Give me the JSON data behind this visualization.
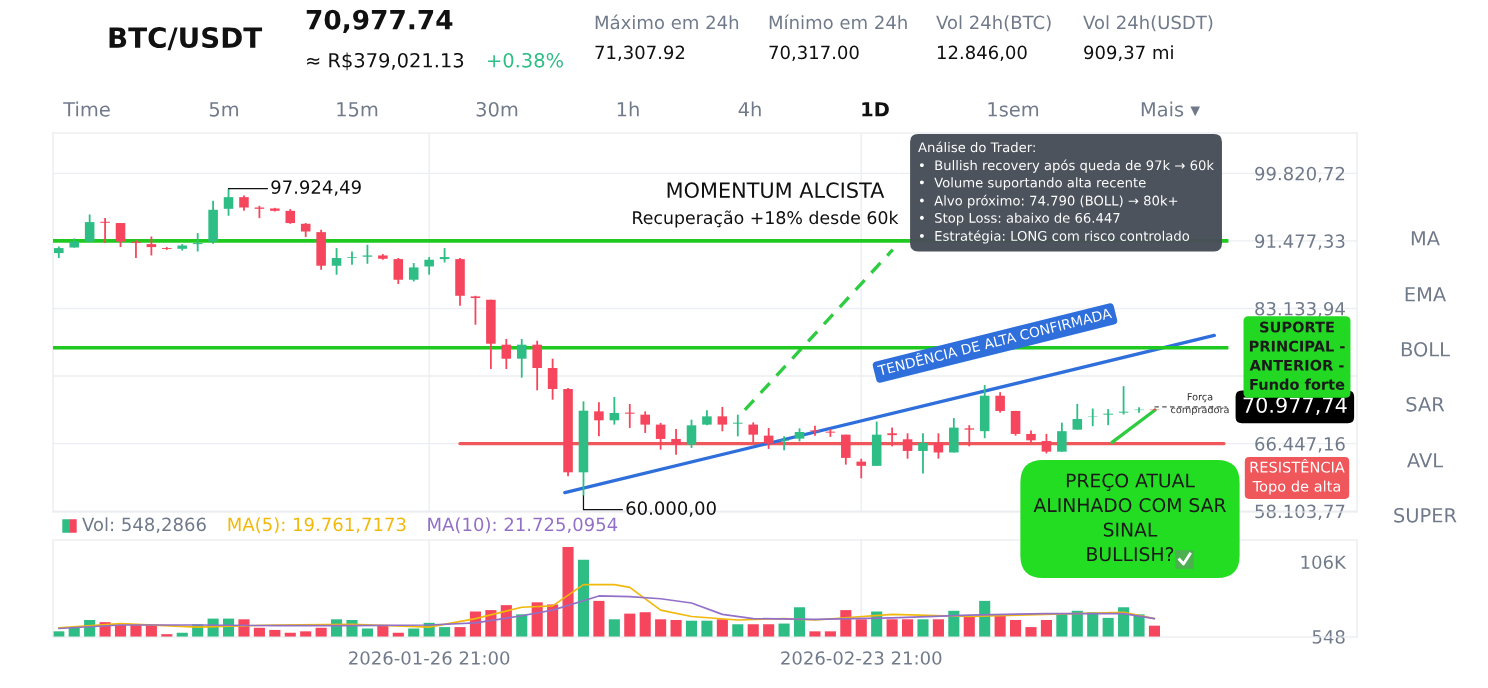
{
  "chart_data": [
    {
      "type": "candlestick",
      "title": "BTC/USDT",
      "x": [
        "2026-01-02T21:00",
        "2026-01-03T21:00",
        "2026-01-04T21:00",
        "2026-01-05T21:00",
        "2026-01-06T21:00",
        "2026-01-07T21:00",
        "2026-01-08T21:00",
        "2026-01-09T21:00",
        "2026-01-10T21:00",
        "2026-01-11T21:00",
        "2026-01-12T21:00",
        "2026-01-13T21:00",
        "2026-01-14T21:00",
        "2026-01-15T21:00",
        "2026-01-16T21:00",
        "2026-01-17T21:00",
        "2026-01-18T21:00",
        "2026-01-19T21:00",
        "2026-01-20T21:00",
        "2026-01-21T21:00",
        "2026-01-22T21:00",
        "2026-01-23T21:00",
        "2026-01-24T21:00",
        "2026-01-25T21:00",
        "2026-01-26T21:00",
        "2026-01-27T21:00",
        "2026-01-28T21:00",
        "2026-01-29T21:00",
        "2026-01-30T21:00",
        "2026-01-31T21:00",
        "2026-02-01T21:00",
        "2026-02-02T21:00",
        "2026-02-03T21:00",
        "2026-02-04T21:00",
        "2026-02-05T21:00",
        "2026-02-06T21:00",
        "2026-02-07T21:00",
        "2026-02-08T21:00",
        "2026-02-09T21:00",
        "2026-02-10T21:00",
        "2026-02-11T21:00",
        "2026-02-12T21:00",
        "2026-02-13T21:00",
        "2026-02-14T21:00",
        "2026-02-15T21:00",
        "2026-02-16T21:00",
        "2026-02-17T21:00",
        "2026-02-18T21:00",
        "2026-02-19T21:00",
        "2026-02-20T21:00",
        "2026-02-21T21:00",
        "2026-02-22T21:00",
        "2026-02-23T21:00",
        "2026-02-24T21:00",
        "2026-02-25T21:00",
        "2026-02-26T21:00",
        "2026-02-27T21:00",
        "2026-02-28T21:00",
        "2026-03-01T21:00",
        "2026-03-02T21:00",
        "2026-03-03T21:00",
        "2026-03-04T21:00",
        "2026-03-05T21:00",
        "2026-03-06T21:00",
        "2026-03-07T21:00",
        "2026-03-08T21:00",
        "2026-03-09T21:00",
        "2026-03-10T21:00",
        "2026-03-11T21:00",
        "2026-03-12T21:00",
        "2026-03-13T21:00",
        "2026-03-14T21:00"
      ],
      "ohlc": [
        [
          89970,
          90790,
          89360,
          90590
        ],
        [
          90660,
          91770,
          90660,
          91400
        ],
        [
          91400,
          94740,
          91400,
          93800
        ],
        [
          93840,
          94290,
          91210,
          93710
        ],
        [
          93680,
          93680,
          90710,
          91400
        ],
        [
          91370,
          91610,
          89360,
          91240
        ],
        [
          91080,
          92020,
          89680,
          90710
        ],
        [
          90590,
          90710,
          90380,
          90470
        ],
        [
          90500,
          91080,
          90290,
          90910
        ],
        [
          91080,
          92440,
          90170,
          91210
        ],
        [
          91400,
          96430,
          91120,
          95320
        ],
        [
          95440,
          97924.49,
          94580,
          96880
        ],
        [
          96880,
          97080,
          95190,
          95600
        ],
        [
          95600,
          95810,
          94290,
          95440
        ],
        [
          95480,
          95560,
          95110,
          95190
        ],
        [
          95190,
          95400,
          93590,
          93680
        ],
        [
          93590,
          93680,
          91950,
          92640
        ],
        [
          92560,
          92850,
          87910,
          88410
        ],
        [
          88410,
          90590,
          87300,
          89360
        ],
        [
          89390,
          90170,
          88530,
          89480
        ],
        [
          89520,
          91000,
          88650,
          89680
        ],
        [
          89680,
          89850,
          89150,
          89270
        ],
        [
          89230,
          89360,
          86150,
          86680
        ],
        [
          86680,
          88740,
          86470,
          88200
        ],
        [
          88320,
          89480,
          87300,
          89150
        ],
        [
          89230,
          90590,
          88810,
          89480
        ],
        [
          89230,
          89360,
          83470,
          84700
        ],
        [
          84620,
          84700,
          81130,
          84420
        ],
        [
          84210,
          84210,
          75660,
          78780
        ],
        [
          78660,
          79360,
          75660,
          76930
        ],
        [
          76930,
          79360,
          74590,
          78660
        ],
        [
          78660,
          79150,
          73020,
          75780
        ],
        [
          75780,
          76930,
          71870,
          73190
        ],
        [
          73190,
          73310,
          62410,
          62900
        ],
        [
          62900,
          71660,
          60000,
          70510
        ],
        [
          70430,
          71540,
          67340,
          69320
        ],
        [
          69320,
          72200,
          68790,
          70230
        ],
        [
          70270,
          71340,
          68380,
          70140
        ],
        [
          70020,
          70430,
          67760,
          68790
        ],
        [
          68790,
          69000,
          65700,
          67020
        ],
        [
          67020,
          68250,
          65080,
          66320
        ],
        [
          66320,
          69400,
          65910,
          68700
        ],
        [
          68790,
          70550,
          68700,
          69810
        ],
        [
          69810,
          70970,
          67960,
          68790
        ],
        [
          68910,
          70020,
          67340,
          69030
        ],
        [
          68790,
          69070,
          66530,
          67550
        ],
        [
          67430,
          68380,
          65790,
          66440
        ],
        [
          66810,
          67340,
          65610,
          66930
        ],
        [
          67060,
          68330,
          66720,
          67880
        ],
        [
          68080,
          68660,
          67430,
          67960
        ],
        [
          67920,
          68250,
          67270,
          67800
        ],
        [
          67550,
          67550,
          63850,
          64680
        ],
        [
          64220,
          64580,
          62160,
          63700
        ],
        [
          63700,
          69170,
          63700,
          67550
        ],
        [
          67720,
          68430,
          66110,
          67490
        ],
        [
          66980,
          67720,
          64580,
          65540
        ],
        [
          65540,
          67720,
          62740,
          66540
        ],
        [
          66540,
          67720,
          64580,
          65350
        ],
        [
          65350,
          69600,
          65350,
          68420
        ],
        [
          68330,
          68720,
          66110,
          68170
        ],
        [
          67980,
          73670,
          67110,
          72360
        ],
        [
          72360,
          72800,
          70270,
          70480
        ],
        [
          70480,
          70480,
          67430,
          67640
        ],
        [
          67640,
          68070,
          66540,
          66850
        ],
        [
          66760,
          67640,
          65230,
          65450
        ],
        [
          65450,
          69030,
          65450,
          67980
        ],
        [
          68170,
          71350,
          68170,
          69480
        ],
        [
          69770,
          70780,
          68600,
          69820
        ],
        [
          70020,
          70700,
          68720,
          70140
        ],
        [
          70270,
          73540,
          70040,
          70390
        ],
        [
          70580,
          70920,
          70270,
          70640
        ],
        [
          70640,
          70760,
          70570,
          70580
        ]
      ],
      "colors": [
        "#2ebd85",
        "#2ebd85",
        "#2ebd85",
        "#f6465d",
        "#f6465d",
        "#f6465d",
        "#f6465d",
        "#f6465d",
        "#2ebd85",
        "#2ebd85",
        "#2ebd85",
        "#2ebd85",
        "#f6465d",
        "#f6465d",
        "#f6465d",
        "#f6465d",
        "#f6465d",
        "#f6465d",
        "#2ebd85",
        "#2ebd85",
        "#2ebd85",
        "#f6465d",
        "#f6465d",
        "#2ebd85",
        "#2ebd85",
        "#2ebd85",
        "#f6465d",
        "#f6465d",
        "#f6465d",
        "#f6465d",
        "#2ebd85",
        "#f6465d",
        "#f6465d",
        "#f6465d",
        "#2ebd85",
        "#f6465d",
        "#2ebd85",
        "#f6465d",
        "#f6465d",
        "#f6465d",
        "#f6465d",
        "#2ebd85",
        "#2ebd85",
        "#f6465d",
        "#2ebd85",
        "#f6465d",
        "#f6465d",
        "#2ebd85",
        "#2ebd85",
        "#f6465d",
        "#f6465d",
        "#f6465d",
        "#f6465d",
        "#2ebd85",
        "#f6465d",
        "#f6465d",
        "#2ebd85",
        "#f6465d",
        "#2ebd85",
        "#f6465d",
        "#2ebd85",
        "#f6465d",
        "#f6465d",
        "#f6465d",
        "#f6465d",
        "#2ebd85",
        "#2ebd85",
        "#2ebd85",
        "#2ebd85",
        "#2ebd85",
        "#2ebd85",
        "#f6465d"
      ],
      "series": [
        {
          "type": "line",
          "color": "#f0575b",
          "x": [
            "2026-01-28T21:00",
            "2026-03-19T09:00"
          ],
          "values": [
            66450,
            66450
          ]
        },
        {
          "type": "line",
          "color": "#2f6fdb",
          "x": [
            "2026-02-04T16:00",
            "2026-03-18T18:00"
          ],
          "values": [
            60400,
            79800
          ]
        },
        {
          "type": "line",
          "color": "#2ecc40",
          "line_style": "dashed",
          "x": [
            "2026-02-16T08:00",
            "2026-02-25T22:00"
          ],
          "values": [
            70600,
            90400
          ]
        },
        {
          "type": "line",
          "color": "#2ecc40",
          "x": [
            "2026-03-12T03:00",
            "2026-03-14T22:00"
          ],
          "values": [
            66600,
            70600
          ]
        }
      ],
      "ref_lines": [
        {
          "axis": "y",
          "value": 91477.33,
          "color": "#1fc91f"
        },
        {
          "axis": "y",
          "value": 78290,
          "color": "#1fc91f"
        },
        {
          "axis": "y",
          "value": 70977.74,
          "label": "70.977,74",
          "color": "#555555",
          "line_style": "dashed"
        }
      ],
      "xlim": [
        "2026-01-02T12:00",
        "2026-03-28T00:00"
      ],
      "xticks": [
        {
          "value": "2026-01-26T21:00",
          "label": null
        },
        {
          "value": "2026-02-23T21:00",
          "label": null
        }
      ],
      "ylim": [
        58000,
        104800
      ],
      "yticks": [
        {
          "value": 58103.77,
          "label": "58.103,77"
        },
        {
          "value": 66447.16,
          "label": "66.447,16"
        },
        {
          "value": 74790.55,
          "label": null
        },
        {
          "value": 83133.94,
          "label": "83.133,94"
        },
        {
          "value": 91477.33,
          "label": "91.477,33"
        },
        {
          "value": 99820.72,
          "label": "99.820,72"
        }
      ],
      "tick_labels": "y",
      "grid": true,
      "annotations": [
        "70,977.74",
        "≈ R$379,021.13",
        "+0.38%",
        "Máximo em 24h",
        "71,307.92",
        "Mínimo em 24h",
        "70,317.00",
        "Vol 24h(BTC)",
        "12.846,00",
        "Vol 24h(USDT)",
        "909,37 mi",
        "Time",
        "5m",
        "15m",
        "30m",
        "1h",
        "4h",
        "1D",
        "1sem",
        "Mais ▾",
        "MA",
        "EMA",
        "BOLL",
        "SAR",
        "AVL",
        "SUPER",
        "MOMENTUM ALCISTA",
        "Recuperação +18% desde 60k",
        "Análise do Trader:\n•  Bullish recovery após queda de 97k → 60k\n•  Volume suportando alta recente\n•  Alvo próximo: 74.790 (BOLL) → 80k+\n•  Stop Loss: abaixo de 66.447\n•  Estratégia: LONG com risco controlado",
        "TENDÊNCIA DE ALTA CONFIRMADA",
        "SUPORTE\nPRINCIPAL -\nANTERIOR -\nFundo forte",
        "RESISTÊNCIA\nTopo de alta",
        "PREÇO ATUAL\nALINHADO COM SAR\nSINAL\nBULLISH?",
        "Força\ncompradora",
        {
          "text": "97.924,49",
          "x": "2026-01-13T21:00",
          "y": 97924.49
        },
        {
          "text": "60.000,00",
          "x": "2026-02-05T21:00",
          "y": 60000
        }
      ]
    },
    {
      "type": "bar",
      "x": [
        "2026-01-02T21:00",
        "2026-01-03T21:00",
        "2026-01-04T21:00",
        "2026-01-05T21:00",
        "2026-01-06T21:00",
        "2026-01-07T21:00",
        "2026-01-08T21:00",
        "2026-01-09T21:00",
        "2026-01-10T21:00",
        "2026-01-11T21:00",
        "2026-01-12T21:00",
        "2026-01-13T21:00",
        "2026-01-14T21:00",
        "2026-01-15T21:00",
        "2026-01-16T21:00",
        "2026-01-17T21:00",
        "2026-01-18T21:00",
        "2026-01-19T21:00",
        "2026-01-20T21:00",
        "2026-01-21T21:00",
        "2026-01-22T21:00",
        "2026-01-23T21:00",
        "2026-01-24T21:00",
        "2026-01-25T21:00",
        "2026-01-26T21:00",
        "2026-01-27T21:00",
        "2026-01-28T21:00",
        "2026-01-29T21:00",
        "2026-01-30T21:00",
        "2026-01-31T21:00",
        "2026-02-01T21:00",
        "2026-02-02T21:00",
        "2026-02-03T21:00",
        "2026-02-04T21:00",
        "2026-02-05T21:00",
        "2026-02-06T21:00",
        "2026-02-07T21:00",
        "2026-02-08T21:00",
        "2026-02-09T21:00",
        "2026-02-10T21:00",
        "2026-02-11T21:00",
        "2026-02-12T21:00",
        "2026-02-13T21:00",
        "2026-02-14T21:00",
        "2026-02-15T21:00",
        "2026-02-16T21:00",
        "2026-02-17T21:00",
        "2026-02-18T21:00",
        "2026-02-19T21:00",
        "2026-02-20T21:00",
        "2026-02-21T21:00",
        "2026-02-22T21:00",
        "2026-02-23T21:00",
        "2026-02-24T21:00",
        "2026-02-25T21:00",
        "2026-02-26T21:00",
        "2026-02-27T21:00",
        "2026-02-28T21:00",
        "2026-03-01T21:00",
        "2026-03-02T21:00",
        "2026-03-03T21:00",
        "2026-03-04T21:00",
        "2026-03-05T21:00",
        "2026-03-06T21:00",
        "2026-03-07T21:00",
        "2026-03-08T21:00",
        "2026-03-09T21:00",
        "2026-03-10T21:00",
        "2026-03-11T21:00",
        "2026-03-12T21:00",
        "2026-03-13T21:00",
        "2026-03-14T21:00"
      ],
      "series": [
        {
          "name": "Vol: 548,2866",
          "colors": [
            "#2ebd85",
            "#2ebd85",
            "#2ebd85",
            "#f6465d",
            "#f6465d",
            "#f6465d",
            "#f6465d",
            "#f6465d",
            "#2ebd85",
            "#2ebd85",
            "#2ebd85",
            "#2ebd85",
            "#f6465d",
            "#f6465d",
            "#f6465d",
            "#f6465d",
            "#f6465d",
            "#f6465d",
            "#2ebd85",
            "#2ebd85",
            "#2ebd85",
            "#f6465d",
            "#f6465d",
            "#2ebd85",
            "#2ebd85",
            "#2ebd85",
            "#f6465d",
            "#f6465d",
            "#f6465d",
            "#f6465d",
            "#2ebd85",
            "#f6465d",
            "#f6465d",
            "#f6465d",
            "#2ebd85",
            "#f6465d",
            "#2ebd85",
            "#f6465d",
            "#f6465d",
            "#f6465d",
            "#f6465d",
            "#2ebd85",
            "#2ebd85",
            "#f6465d",
            "#2ebd85",
            "#f6465d",
            "#f6465d",
            "#2ebd85",
            "#2ebd85",
            "#f6465d",
            "#f6465d",
            "#f6465d",
            "#f6465d",
            "#2ebd85",
            "#f6465d",
            "#f6465d",
            "#2ebd85",
            "#f6465d",
            "#2ebd85",
            "#f6465d",
            "#2ebd85",
            "#f6465d",
            "#f6465d",
            "#f6465d",
            "#f6465d",
            "#2ebd85",
            "#2ebd85",
            "#2ebd85",
            "#2ebd85",
            "#2ebd85",
            "#2ebd85",
            "#f6465d"
          ],
          "values": [
            8000,
            13000,
            24000,
            21000,
            17000,
            17000,
            17000,
            4000,
            6000,
            18000,
            26000,
            26000,
            25000,
            13000,
            10000,
            6000,
            8000,
            13000,
            25000,
            24000,
            12000,
            17000,
            6000,
            12000,
            20000,
            14000,
            14000,
            36000,
            38000,
            45000,
            32000,
            49000,
            46000,
            127000,
            109000,
            51000,
            25000,
            33000,
            35000,
            25000,
            24000,
            23000,
            23000,
            25000,
            18000,
            18000,
            18000,
            19000,
            42000,
            8000,
            8000,
            38000,
            25000,
            36000,
            25000,
            25000,
            25000,
            25000,
            37000,
            29000,
            51000,
            32000,
            24000,
            14000,
            24000,
            33000,
            37000,
            35000,
            27000,
            42000,
            32000,
            16000
          ]
        },
        {
          "name": "MA(5): 19.761,7173",
          "type": "line",
          "color": "#f0b90b",
          "x": [
            "2026-01-02T21:00",
            "2026-01-06T21:00",
            "2026-01-11T21:00",
            "2026-01-16T21:00",
            "2026-01-21T21:00",
            "2026-01-26T21:00",
            "2026-01-29T21:00",
            "2026-02-01T21:00",
            "2026-02-03T21:00",
            "2026-02-05T21:00",
            "2026-02-07T21:00",
            "2026-02-08T21:00",
            "2026-02-10T21:00",
            "2026-02-12T21:00",
            "2026-02-15T21:00",
            "2026-02-18T21:00",
            "2026-02-20T21:00",
            "2026-02-25T21:00",
            "2026-03-02T21:00",
            "2026-03-07T21:00",
            "2026-03-12T21:00",
            "2026-03-14T21:00"
          ],
          "values": [
            13000,
            19000,
            14000,
            17000,
            18000,
            14000,
            26000,
            42000,
            44000,
            74000,
            74000,
            70000,
            38000,
            29000,
            24000,
            26000,
            24000,
            32000,
            29000,
            32000,
            35000,
            26000
          ]
        },
        {
          "name": "MA(10): 21.725,0954",
          "type": "line",
          "color": "#9370c8",
          "x": [
            "2026-01-02T21:00",
            "2026-01-06T21:00",
            "2026-01-11T21:00",
            "2026-01-16T21:00",
            "2026-01-21T21:00",
            "2026-01-26T21:00",
            "2026-01-29T21:00",
            "2026-02-01T21:00",
            "2026-02-03T21:00",
            "2026-02-06T21:00",
            "2026-02-08T21:00",
            "2026-02-10T21:00",
            "2026-02-12T21:00",
            "2026-02-14T21:00",
            "2026-02-16T21:00",
            "2026-02-20T21:00",
            "2026-02-25T21:00",
            "2026-03-02T21:00",
            "2026-03-07T21:00",
            "2026-03-12T21:00",
            "2026-03-14T21:00"
          ],
          "values": [
            12000,
            17000,
            17000,
            16000,
            16000,
            17000,
            20000,
            30000,
            38000,
            58000,
            57000,
            54000,
            48000,
            32000,
            26000,
            25000,
            27000,
            31000,
            33000,
            33000,
            26000
          ]
        }
      ],
      "xlim": [
        "2026-01-02T12:00",
        "2026-03-28T00:00"
      ],
      "xticks": [
        {
          "value": "2026-01-26T21:00",
          "label": "2026-01-26 21:00"
        },
        {
          "value": "2026-02-23T21:00",
          "label": "2026-02-23 21:00"
        }
      ],
      "ylim": [
        0,
        137000
      ],
      "yticks": [
        548,
        {
          "value": 106000,
          "label": "106K"
        }
      ],
      "grid": "x",
      "legend": "top left"
    }
  ]
}
